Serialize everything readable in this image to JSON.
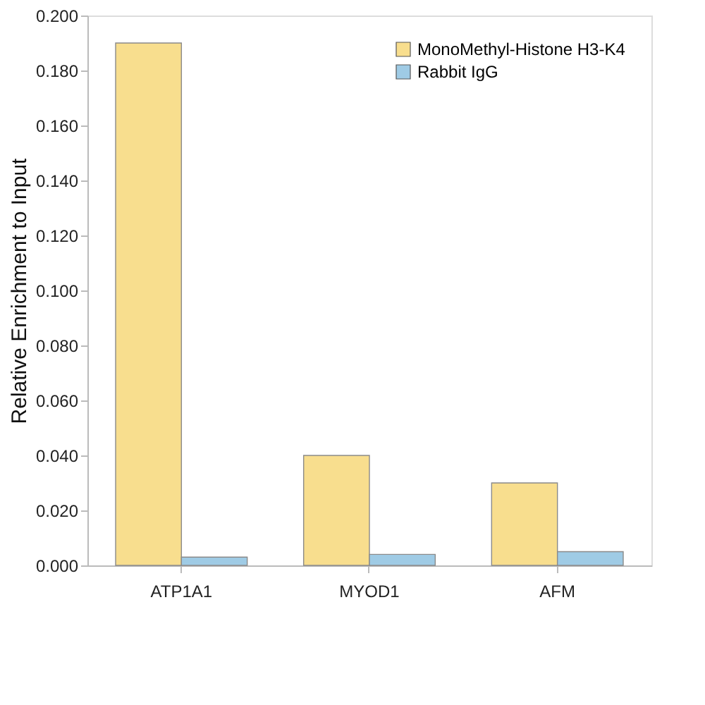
{
  "chart_data": {
    "type": "bar",
    "ylabel": "Relative Enrichment to Input",
    "categories": [
      "ATP1A1",
      "MYOD1",
      "AFM"
    ],
    "series": [
      {
        "name": "MonoMethyl-Histone H3-K4",
        "color": "#f8de8e",
        "values": [
          0.19,
          0.04,
          0.03
        ]
      },
      {
        "name": "Rabbit IgG",
        "color": "#9fcbe5",
        "values": [
          0.003,
          0.004,
          0.005
        ]
      }
    ],
    "ylim": [
      0,
      0.2
    ],
    "yticks": [
      {
        "value": 0,
        "label": "0.000"
      },
      {
        "value": 0.02,
        "label": "0.020"
      },
      {
        "value": 0.04,
        "label": "0.040"
      },
      {
        "value": 0.06,
        "label": "0.060"
      },
      {
        "value": 0.08,
        "label": "0.080"
      },
      {
        "value": 0.1,
        "label": "0.100"
      },
      {
        "value": 0.12,
        "label": "0.120"
      },
      {
        "value": 0.14,
        "label": "0.140"
      },
      {
        "value": 0.16,
        "label": "0.160"
      },
      {
        "value": 0.18,
        "label": "0.180"
      },
      {
        "value": 0.2,
        "label": "0.200"
      }
    ],
    "grid": false,
    "legend": "top right"
  }
}
